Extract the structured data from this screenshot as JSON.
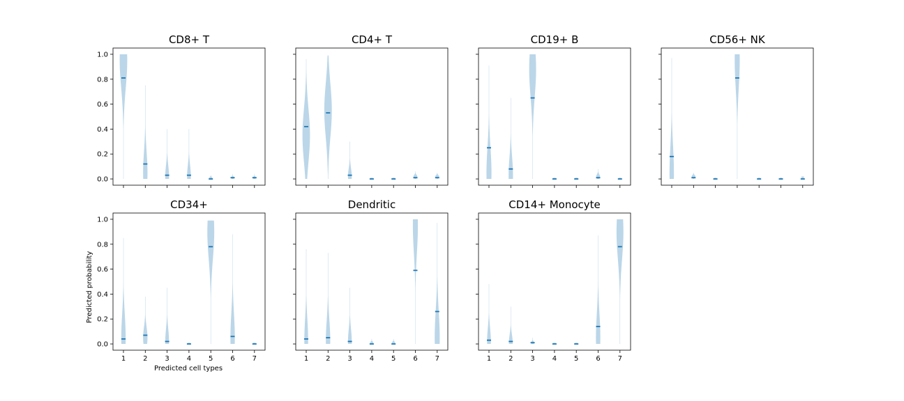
{
  "chart_data": {
    "type": "violin",
    "xlabel": "Predicted cell types",
    "ylabel": "Predicted probability",
    "ylim": [
      -0.05,
      1.05
    ],
    "yticks": [
      0.0,
      0.2,
      0.4,
      0.6,
      0.8,
      1.0
    ],
    "ytick_labels": [
      "0.0",
      "0.2",
      "0.4",
      "0.6",
      "0.8",
      "1.0"
    ],
    "xticks": [
      "1",
      "2",
      "3",
      "4",
      "5",
      "6",
      "7"
    ],
    "colors": {
      "violin": "#1f77b4",
      "median": "#1f77b4",
      "axis": "#000000"
    },
    "panels": [
      {
        "title": "CD8+ T",
        "violins": [
          {
            "min": 0.0,
            "max": 1.0,
            "median": 0.81,
            "peak": 0.95,
            "hw": 0.6
          },
          {
            "min": 0.0,
            "max": 0.75,
            "median": 0.12,
            "peak": 0.05,
            "hw": 0.35
          },
          {
            "min": 0.0,
            "max": 0.4,
            "median": 0.03,
            "peak": 0.02,
            "hw": 0.3
          },
          {
            "min": 0.0,
            "max": 0.4,
            "median": 0.03,
            "peak": 0.02,
            "hw": 0.3
          },
          {
            "min": 0.0,
            "max": 0.03,
            "median": 0.0,
            "peak": 0.01,
            "hw": 0.25
          },
          {
            "min": 0.0,
            "max": 0.04,
            "median": 0.01,
            "peak": 0.01,
            "hw": 0.25
          },
          {
            "min": 0.0,
            "max": 0.04,
            "median": 0.01,
            "peak": 0.01,
            "hw": 0.25
          }
        ]
      },
      {
        "title": "CD4+ T",
        "violins": [
          {
            "min": 0.0,
            "max": 0.96,
            "median": 0.42,
            "peak": 0.35,
            "hw": 0.6
          },
          {
            "min": 0.0,
            "max": 0.99,
            "median": 0.53,
            "peak": 0.55,
            "hw": 0.6
          },
          {
            "min": 0.0,
            "max": 0.3,
            "median": 0.03,
            "peak": 0.02,
            "hw": 0.3
          },
          {
            "min": 0.0,
            "max": 0.01,
            "median": 0.0,
            "peak": 0.005,
            "hw": 0.2
          },
          {
            "min": 0.0,
            "max": 0.01,
            "median": 0.0,
            "peak": 0.005,
            "hw": 0.2
          },
          {
            "min": 0.0,
            "max": 0.06,
            "median": 0.01,
            "peak": 0.02,
            "hw": 0.3
          },
          {
            "min": 0.0,
            "max": 0.05,
            "median": 0.01,
            "peak": 0.02,
            "hw": 0.3
          }
        ]
      },
      {
        "title": "CD19+ B",
        "violins": [
          {
            "min": 0.0,
            "max": 0.91,
            "median": 0.25,
            "peak": 0.05,
            "hw": 0.4
          },
          {
            "min": 0.0,
            "max": 0.65,
            "median": 0.08,
            "peak": 0.03,
            "hw": 0.35
          },
          {
            "min": 0.0,
            "max": 1.0,
            "median": 0.65,
            "peak": 0.88,
            "hw": 0.55
          },
          {
            "min": 0.0,
            "max": 0.01,
            "median": 0.0,
            "peak": 0.005,
            "hw": 0.2
          },
          {
            "min": 0.0,
            "max": 0.01,
            "median": 0.0,
            "peak": 0.005,
            "hw": 0.2
          },
          {
            "min": 0.0,
            "max": 0.08,
            "median": 0.01,
            "peak": 0.02,
            "hw": 0.3
          },
          {
            "min": 0.0,
            "max": 0.01,
            "median": 0.0,
            "peak": 0.005,
            "hw": 0.2
          }
        ]
      },
      {
        "title": "CD56+ NK",
        "violins": [
          {
            "min": 0.0,
            "max": 0.97,
            "median": 0.18,
            "peak": 0.05,
            "hw": 0.35
          },
          {
            "min": 0.0,
            "max": 0.05,
            "median": 0.01,
            "peak": 0.02,
            "hw": 0.3
          },
          {
            "min": 0.0,
            "max": 0.01,
            "median": 0.0,
            "peak": 0.005,
            "hw": 0.2
          },
          {
            "min": 0.0,
            "max": 1.0,
            "median": 0.81,
            "peak": 0.95,
            "hw": 0.4
          },
          {
            "min": 0.0,
            "max": 0.01,
            "median": 0.0,
            "peak": 0.005,
            "hw": 0.2
          },
          {
            "min": 0.0,
            "max": 0.01,
            "median": 0.0,
            "peak": 0.005,
            "hw": 0.2
          },
          {
            "min": 0.0,
            "max": 0.02,
            "median": 0.0,
            "peak": 0.005,
            "hw": 0.2
          }
        ]
      },
      {
        "title": "CD34+",
        "violins": [
          {
            "min": 0.0,
            "max": 0.85,
            "median": 0.04,
            "peak": 0.05,
            "hw": 0.35
          },
          {
            "min": 0.0,
            "max": 0.38,
            "median": 0.07,
            "peak": 0.05,
            "hw": 0.35
          },
          {
            "min": 0.0,
            "max": 0.45,
            "median": 0.02,
            "peak": 0.02,
            "hw": 0.3
          },
          {
            "min": 0.0,
            "max": 0.01,
            "median": 0.0,
            "peak": 0.005,
            "hw": 0.2
          },
          {
            "min": 0.0,
            "max": 0.99,
            "median": 0.78,
            "peak": 0.9,
            "hw": 0.55
          },
          {
            "min": 0.0,
            "max": 0.88,
            "median": 0.06,
            "peak": 0.05,
            "hw": 0.35
          },
          {
            "min": 0.0,
            "max": 0.01,
            "median": 0.0,
            "peak": 0.005,
            "hw": 0.2
          }
        ]
      },
      {
        "title": "Dendritic",
        "violins": [
          {
            "min": 0.0,
            "max": 0.76,
            "median": 0.04,
            "peak": 0.03,
            "hw": 0.3
          },
          {
            "min": 0.0,
            "max": 0.73,
            "median": 0.05,
            "peak": 0.03,
            "hw": 0.35
          },
          {
            "min": 0.0,
            "max": 0.45,
            "median": 0.02,
            "peak": 0.02,
            "hw": 0.3
          },
          {
            "min": 0.0,
            "max": 0.04,
            "median": 0.0,
            "peak": 0.01,
            "hw": 0.25
          },
          {
            "min": 0.0,
            "max": 0.04,
            "median": 0.0,
            "peak": 0.01,
            "hw": 0.25
          },
          {
            "min": 0.0,
            "max": 1.0,
            "median": 0.59,
            "peak": 0.95,
            "hw": 0.4
          },
          {
            "min": 0.0,
            "max": 0.97,
            "median": 0.26,
            "peak": 0.05,
            "hw": 0.4
          }
        ]
      },
      {
        "title": "CD14+ Monocyte",
        "violins": [
          {
            "min": 0.0,
            "max": 0.48,
            "median": 0.03,
            "peak": 0.02,
            "hw": 0.3
          },
          {
            "min": 0.0,
            "max": 0.3,
            "median": 0.02,
            "peak": 0.01,
            "hw": 0.3
          },
          {
            "min": 0.0,
            "max": 0.05,
            "median": 0.01,
            "peak": 0.01,
            "hw": 0.25
          },
          {
            "min": 0.0,
            "max": 0.01,
            "median": 0.0,
            "peak": 0.005,
            "hw": 0.2
          },
          {
            "min": 0.0,
            "max": 0.01,
            "median": 0.0,
            "peak": 0.005,
            "hw": 0.2
          },
          {
            "min": 0.0,
            "max": 0.87,
            "median": 0.14,
            "peak": 0.05,
            "hw": 0.35
          },
          {
            "min": 0.0,
            "max": 1.0,
            "median": 0.78,
            "peak": 0.9,
            "hw": 0.55
          }
        ]
      }
    ]
  }
}
